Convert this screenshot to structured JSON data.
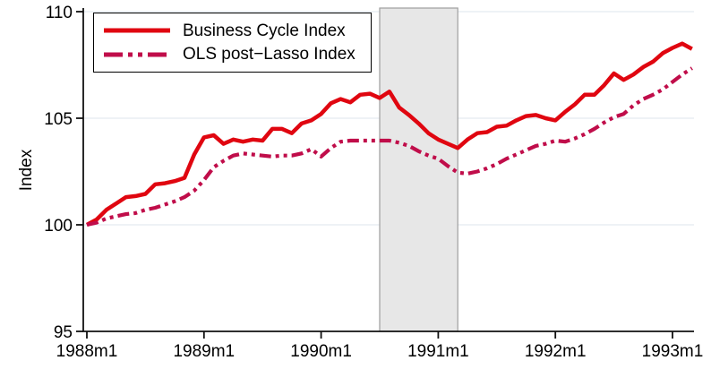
{
  "chart_data": {
    "type": "line",
    "title": "",
    "xlabel": "",
    "ylabel": "Index",
    "ylim": [
      95,
      110
    ],
    "yticks": [
      95,
      100,
      105,
      110
    ],
    "gridline_values": [
      100,
      105,
      110
    ],
    "x_unit": "month",
    "x_start": "1988m1",
    "x_end_of_data": "1993m3",
    "months_total": 63,
    "xtick_labels": [
      "1988m1",
      "1989m1",
      "1990m1",
      "1991m1",
      "1992m1",
      "1993m1"
    ],
    "xtick_month_indices": [
      0,
      12,
      24,
      36,
      48,
      60
    ],
    "legend_position": "top-left",
    "grid": true,
    "style_colors": {
      "grid": "#e9eef3",
      "axis": "#111111",
      "text": "#000000",
      "legend_border": "#000000",
      "background": "#ffffff"
    },
    "recession_band": {
      "from_label": "1990m7",
      "to_label": "1991m3",
      "from_month_index": 30,
      "to_month_index": 38,
      "fill": "#e7e7e7",
      "border": "#9e9e9e"
    },
    "series": [
      {
        "name": "Business Cycle Index",
        "color": "#e00610",
        "style": "solid",
        "values": [
          100.0,
          100.25,
          100.7,
          101.0,
          101.3,
          101.35,
          101.45,
          101.9,
          101.95,
          102.05,
          102.2,
          103.3,
          104.1,
          104.2,
          103.8,
          104.0,
          103.9,
          104.0,
          103.95,
          104.5,
          104.5,
          104.3,
          104.75,
          104.9,
          105.2,
          105.7,
          105.9,
          105.75,
          106.1,
          106.15,
          105.95,
          106.25,
          105.5,
          105.15,
          104.75,
          104.3,
          104.0,
          103.8,
          103.6,
          104.0,
          104.3,
          104.35,
          104.6,
          104.65,
          104.9,
          105.1,
          105.15,
          105.0,
          104.9,
          105.3,
          105.65,
          106.1,
          106.1,
          106.55,
          107.1,
          106.8,
          107.05,
          107.4,
          107.65,
          108.05,
          108.3,
          108.5,
          108.25
        ]
      },
      {
        "name": "OLS post−Lasso Index",
        "color": "#c00d4a",
        "style": "dash-dot-dot",
        "values": [
          100.0,
          100.1,
          100.3,
          100.4,
          100.5,
          100.55,
          100.7,
          100.8,
          100.95,
          101.1,
          101.3,
          101.6,
          102.1,
          102.7,
          103.0,
          103.25,
          103.35,
          103.3,
          103.25,
          103.2,
          103.25,
          103.25,
          103.35,
          103.55,
          103.2,
          103.6,
          103.9,
          103.95,
          103.95,
          103.95,
          103.95,
          103.95,
          103.85,
          103.7,
          103.45,
          103.25,
          103.1,
          102.75,
          102.45,
          102.4,
          102.5,
          102.65,
          102.85,
          103.1,
          103.3,
          103.5,
          103.7,
          103.8,
          103.95,
          103.9,
          104.05,
          104.25,
          104.5,
          104.8,
          105.05,
          105.2,
          105.6,
          105.9,
          106.1,
          106.35,
          106.7,
          107.05,
          107.35
        ]
      }
    ]
  }
}
